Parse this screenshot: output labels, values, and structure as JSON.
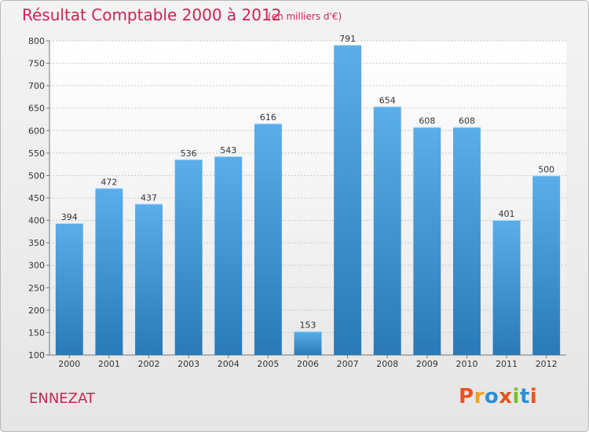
{
  "header": {
    "title": "Résultat Comptable 2000 à 2012",
    "subtitle": "(en milliers d'€)"
  },
  "footer": {
    "commune": "ENNEZAT",
    "logo_text": "Proxiti"
  },
  "colors": {
    "title": "#cc2454",
    "bar_top": "#5aaeea",
    "bar_bottom": "#2a79b8",
    "logo_letters": [
      "#e8541e",
      "#f0a21a",
      "#2a8fd6",
      "#e8541e",
      "#7bbf2a",
      "#2a8fd6",
      "#e8541e"
    ]
  },
  "chart_data": {
    "type": "bar",
    "title": "Résultat Comptable 2000 à 2012",
    "subtitle": "(en milliers d'€)",
    "categories": [
      "2000",
      "2001",
      "2002",
      "2003",
      "2004",
      "2005",
      "2006",
      "2007",
      "2008",
      "2009",
      "2010",
      "2011",
      "2012"
    ],
    "values": [
      394,
      472,
      437,
      536,
      543,
      616,
      153,
      791,
      654,
      608,
      608,
      401,
      500
    ],
    "ylim": [
      100,
      800
    ],
    "yticks": [
      100,
      150,
      200,
      250,
      300,
      350,
      400,
      450,
      500,
      550,
      600,
      650,
      700,
      750,
      800
    ],
    "grid": true,
    "data_labels": true
  }
}
